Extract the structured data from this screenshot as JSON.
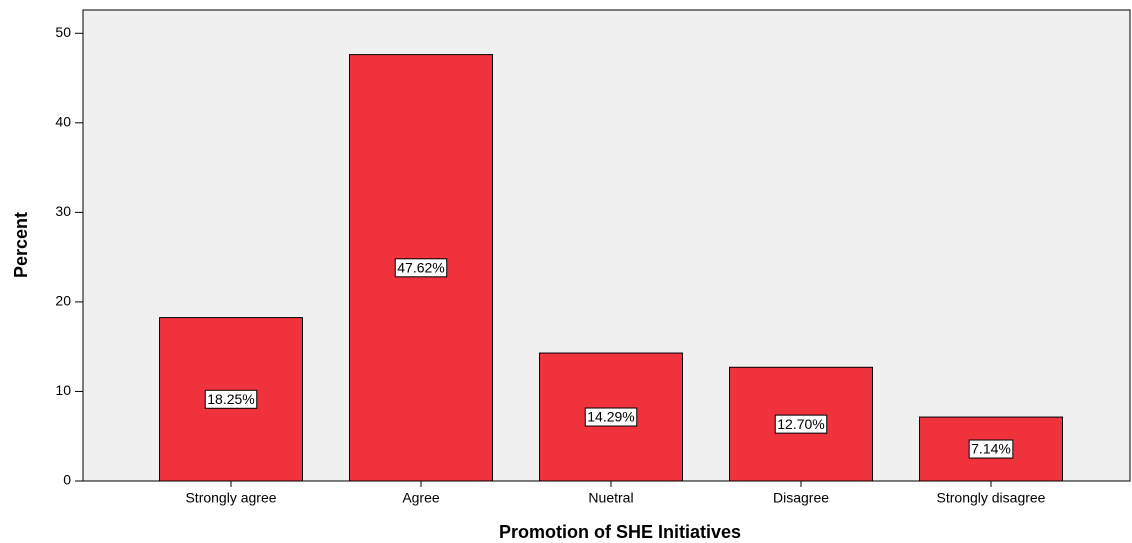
{
  "chart_data": {
    "type": "bar",
    "x_label": "Promotion of SHE Initiatives",
    "y_label": "Percent",
    "categories": [
      "Strongly agree",
      "Agree",
      "Nuetral",
      "Disagree",
      "Strongly disagree"
    ],
    "values": [
      18.25,
      47.62,
      14.29,
      12.7,
      7.14
    ],
    "value_labels": [
      "18.25%",
      "47.62%",
      "14.29%",
      "12.70%",
      "7.14%"
    ],
    "color": "#f0323c",
    "ylim": [
      0,
      52.6
    ],
    "yticks": [
      0,
      10,
      20,
      30,
      40,
      50
    ],
    "grid": false
  }
}
